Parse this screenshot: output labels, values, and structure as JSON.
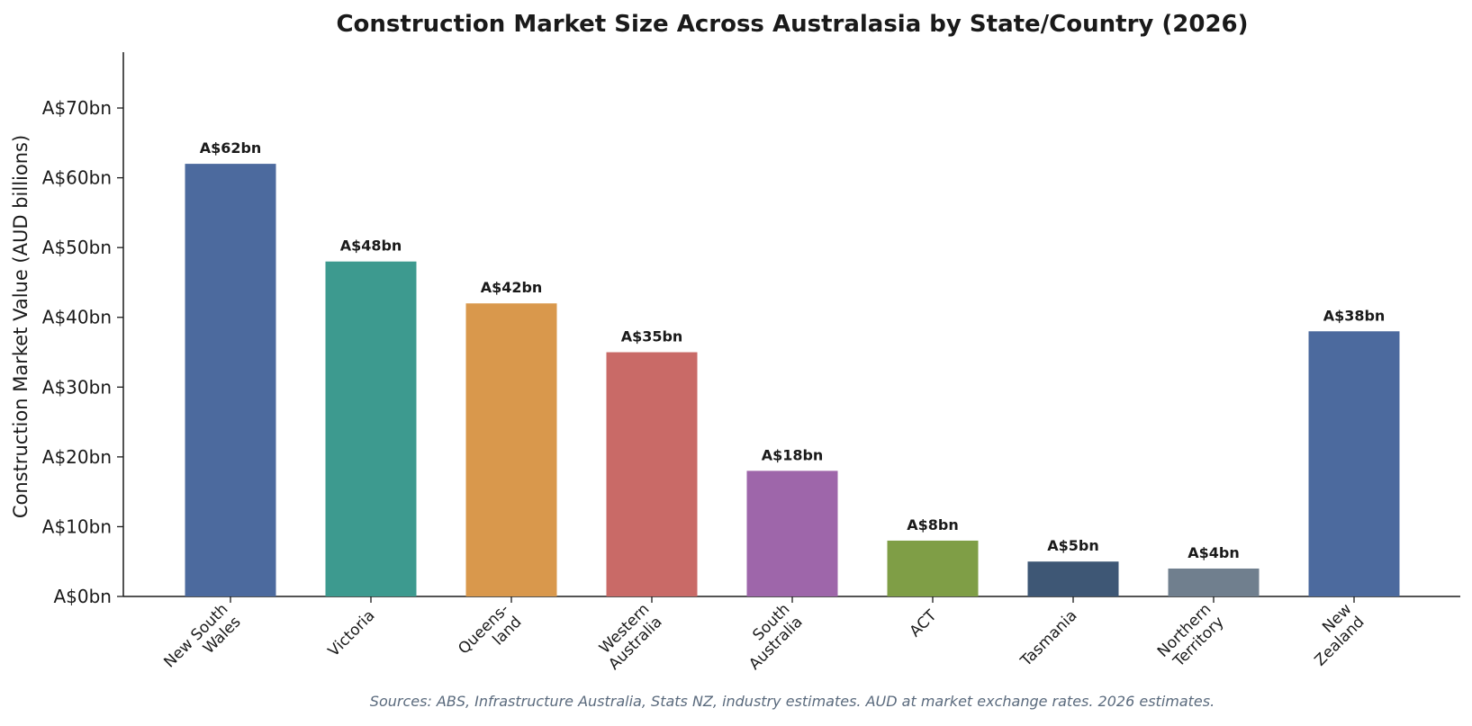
{
  "chart_data": {
    "type": "bar",
    "title": "Construction Market Size Across Australasia by State/Country (2026)",
    "xlabel": "",
    "ylabel": "Construction Market Value (AUD billions)",
    "ylim": [
      0,
      78
    ],
    "yticks": [
      0,
      10,
      20,
      30,
      40,
      50,
      60,
      70
    ],
    "ytick_labels": [
      "A$0bn",
      "A$10bn",
      "A$20bn",
      "A$30bn",
      "A$40bn",
      "A$50bn",
      "A$60bn",
      "A$70bn"
    ],
    "categories": [
      "New South\nWales",
      "Victoria",
      "Queens-\nland",
      "Western\nAustralia",
      "South\nAustralia",
      "ACT",
      "Tasmania",
      "Northern\nTerritory",
      "New\nZealand"
    ],
    "values": [
      62,
      48,
      42,
      35,
      18,
      8,
      5,
      4,
      38
    ],
    "value_labels": [
      "A$62bn",
      "A$48bn",
      "A$42bn",
      "A$35bn",
      "A$18bn",
      "A$8bn",
      "A$5bn",
      "A$4bn",
      "A$38bn"
    ],
    "colors": [
      "#4c6a9e",
      "#3d9a8f",
      "#d9984c",
      "#c96a67",
      "#9e66aa",
      "#7f9e46",
      "#3e5775",
      "#707f8e",
      "#4c6a9e"
    ],
    "grid": false,
    "legend": "none",
    "source_note": "Sources: ABS, Infrastructure Australia, Stats NZ, industry estimates. AUD at market exchange rates. 2026 estimates."
  }
}
